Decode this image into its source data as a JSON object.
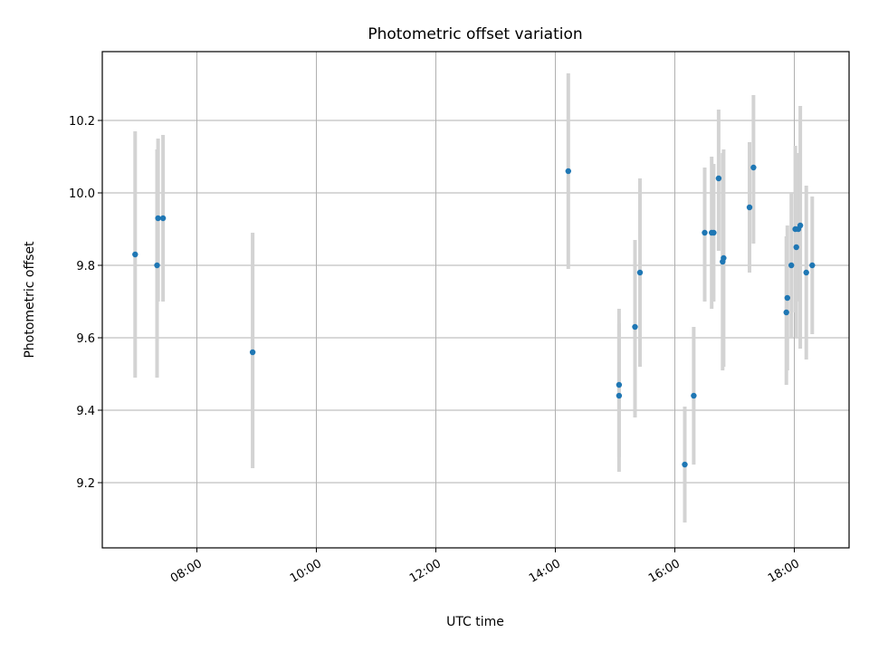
{
  "chart_data": {
    "type": "scatter",
    "title": "Photometric offset variation",
    "xlabel": "UTC time",
    "ylabel": "Photometric offset",
    "x_is_time": true,
    "xlim": [
      "06:25",
      "18:55"
    ],
    "ylim": [
      9.02,
      10.39
    ],
    "x_ticks": [
      "08:00",
      "10:00",
      "12:00",
      "14:00",
      "16:00",
      "18:00"
    ],
    "y_ticks": [
      9.2,
      9.4,
      9.6,
      9.8,
      10.0,
      10.2
    ],
    "grid": true,
    "colors": {
      "point": "#1f77b4",
      "errorbar": "#d3d3d3",
      "grid": "#b0b0b0"
    },
    "points": [
      {
        "x": "06:58",
        "y": 9.83,
        "ylo": 9.49,
        "yhi": 10.17
      },
      {
        "x": "07:20",
        "y": 9.8,
        "ylo": 9.49,
        "yhi": 10.12
      },
      {
        "x": "07:21",
        "y": 9.93,
        "ylo": 9.7,
        "yhi": 10.15
      },
      {
        "x": "07:26",
        "y": 9.93,
        "ylo": 9.7,
        "yhi": 10.16
      },
      {
        "x": "08:56",
        "y": 9.56,
        "ylo": 9.24,
        "yhi": 9.89
      },
      {
        "x": "14:13",
        "y": 10.06,
        "ylo": 9.79,
        "yhi": 10.33
      },
      {
        "x": "15:04",
        "y": 9.47,
        "ylo": 9.27,
        "yhi": 9.68
      },
      {
        "x": "15:04",
        "y": 9.44,
        "ylo": 9.23,
        "yhi": 9.64
      },
      {
        "x": "15:20",
        "y": 9.63,
        "ylo": 9.38,
        "yhi": 9.87
      },
      {
        "x": "15:25",
        "y": 9.78,
        "ylo": 9.52,
        "yhi": 10.04
      },
      {
        "x": "16:10",
        "y": 9.25,
        "ylo": 9.09,
        "yhi": 9.41
      },
      {
        "x": "16:19",
        "y": 9.44,
        "ylo": 9.25,
        "yhi": 9.63
      },
      {
        "x": "16:30",
        "y": 9.89,
        "ylo": 9.7,
        "yhi": 10.07
      },
      {
        "x": "16:37",
        "y": 9.89,
        "ylo": 9.68,
        "yhi": 10.1
      },
      {
        "x": "16:39",
        "y": 9.89,
        "ylo": 9.7,
        "yhi": 10.08
      },
      {
        "x": "16:44",
        "y": 10.04,
        "ylo": 9.84,
        "yhi": 10.23
      },
      {
        "x": "16:48",
        "y": 9.81,
        "ylo": 9.51,
        "yhi": 10.11
      },
      {
        "x": "16:49",
        "y": 9.82,
        "ylo": 9.52,
        "yhi": 10.12
      },
      {
        "x": "17:15",
        "y": 9.96,
        "ylo": 9.78,
        "yhi": 10.14
      },
      {
        "x": "17:19",
        "y": 10.07,
        "ylo": 9.86,
        "yhi": 10.27
      },
      {
        "x": "17:52",
        "y": 9.67,
        "ylo": 9.47,
        "yhi": 9.88
      },
      {
        "x": "17:53",
        "y": 9.71,
        "ylo": 9.51,
        "yhi": 9.91
      },
      {
        "x": "17:57",
        "y": 9.8,
        "ylo": 9.6,
        "yhi": 10.0
      },
      {
        "x": "18:01",
        "y": 9.9,
        "ylo": 9.67,
        "yhi": 10.13
      },
      {
        "x": "18:02",
        "y": 9.85,
        "ylo": 9.6,
        "yhi": 10.09
      },
      {
        "x": "18:04",
        "y": 9.9,
        "ylo": 9.7,
        "yhi": 10.11
      },
      {
        "x": "18:06",
        "y": 9.91,
        "ylo": 9.57,
        "yhi": 10.24
      },
      {
        "x": "18:12",
        "y": 9.78,
        "ylo": 9.54,
        "yhi": 10.02
      },
      {
        "x": "18:18",
        "y": 9.8,
        "ylo": 9.61,
        "yhi": 9.99
      }
    ]
  }
}
